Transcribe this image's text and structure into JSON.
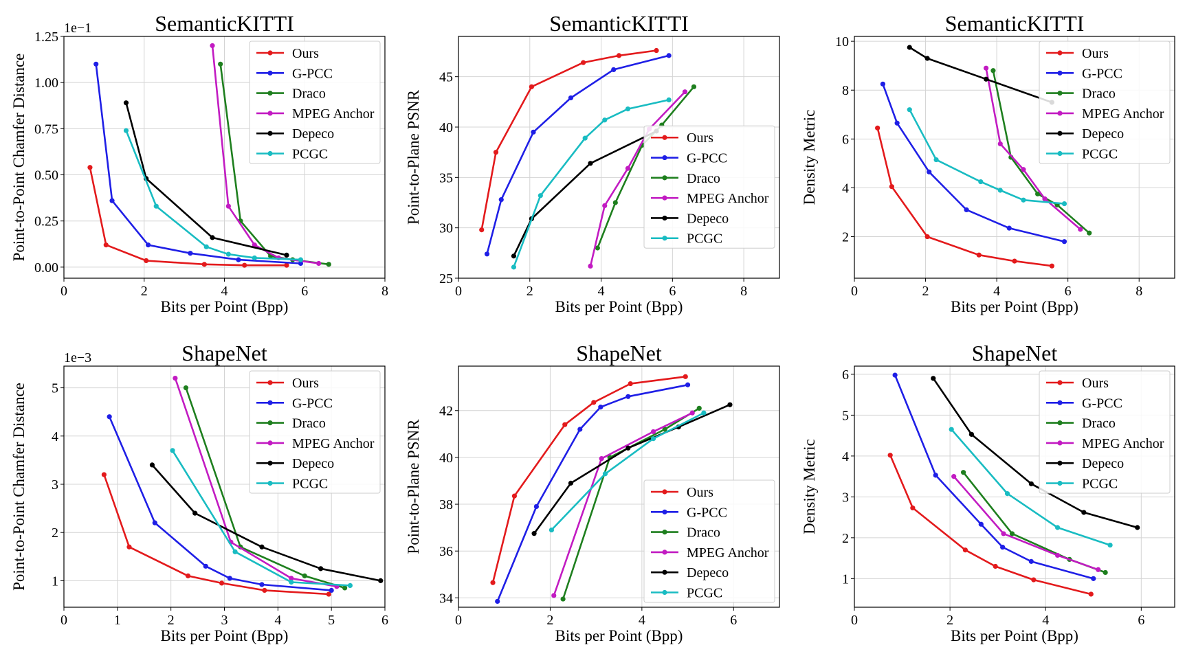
{
  "figure": {
    "colors": {
      "Ours": "#e31a1c",
      "G-PCC": "#1f1fe6",
      "Draco": "#1e7f1e",
      "MPEG Anchor": "#c21bc2",
      "Depeco": "#000000",
      "PCGC": "#19bcc2"
    }
  },
  "chart_data": [
    {
      "type": "line",
      "title": "SemanticKITTI",
      "xlabel": "Bits per Point (Bpp)",
      "ylabel": "Point-to-Point Chamfer Distance",
      "offset_text": "1e−1",
      "xlim": [
        0,
        8
      ],
      "ylim": [
        -0.06,
        1.25
      ],
      "xticks": [
        0,
        2,
        4,
        6,
        8
      ],
      "xtick_labels": [
        "0",
        "2",
        "4",
        "6",
        "8"
      ],
      "yticks": [
        0,
        0.25,
        0.5,
        0.75,
        1.0,
        1.25
      ],
      "ytick_labels": [
        "0.00",
        "0.25",
        "0.50",
        "0.75",
        "1.00",
        "1.25"
      ],
      "legend_pos": "top-right",
      "series": [
        {
          "name": "Ours",
          "x": [
            0.65,
            1.05,
            2.05,
            3.5,
            4.5,
            5.55
          ],
          "y": [
            0.54,
            0.12,
            0.035,
            0.015,
            0.01,
            0.01
          ]
        },
        {
          "name": "G-PCC",
          "x": [
            0.8,
            1.2,
            2.1,
            3.15,
            4.35,
            5.9
          ],
          "y": [
            1.1,
            0.36,
            0.12,
            0.075,
            0.04,
            0.02
          ]
        },
        {
          "name": "Draco",
          "x": [
            3.9,
            4.4,
            5.15,
            5.7,
            6.6
          ],
          "y": [
            1.1,
            0.25,
            0.06,
            0.04,
            0.015
          ]
        },
        {
          "name": "MPEG Anchor",
          "x": [
            3.7,
            4.1,
            4.75,
            5.35,
            6.35
          ],
          "y": [
            1.2,
            0.33,
            0.12,
            0.05,
            0.02
          ]
        },
        {
          "name": "Depeco",
          "x": [
            1.55,
            2.05,
            3.7,
            5.55
          ],
          "y": [
            0.89,
            0.48,
            0.16,
            0.065
          ]
        },
        {
          "name": "PCGC",
          "x": [
            1.55,
            2.3,
            3.55,
            4.1,
            4.75,
            5.9
          ],
          "y": [
            0.74,
            0.33,
            0.11,
            0.07,
            0.05,
            0.04
          ]
        }
      ]
    },
    {
      "type": "line",
      "title": "SemanticKITTI",
      "xlabel": "Bits per Point (Bpp)",
      "ylabel": "Point-to-Plane PSNR",
      "xlim": [
        0,
        9
      ],
      "ylim": [
        25,
        49
      ],
      "xticks": [
        0,
        2,
        4,
        6,
        8
      ],
      "xtick_labels": [
        "0",
        "2",
        "4",
        "6",
        "8"
      ],
      "yticks": [
        25,
        30,
        35,
        40,
        45
      ],
      "ytick_labels": [
        "25",
        "30",
        "35",
        "40",
        "45"
      ],
      "legend_pos": "center-right",
      "series": [
        {
          "name": "Ours",
          "x": [
            0.65,
            1.05,
            2.05,
            3.5,
            4.5,
            5.55
          ],
          "y": [
            29.8,
            37.5,
            44.0,
            46.4,
            47.1,
            47.6
          ]
        },
        {
          "name": "G-PCC",
          "x": [
            0.8,
            1.2,
            2.1,
            3.15,
            4.35,
            5.9
          ],
          "y": [
            27.4,
            32.8,
            39.5,
            42.9,
            45.7,
            47.1
          ]
        },
        {
          "name": "Draco",
          "x": [
            3.9,
            4.4,
            5.15,
            5.7,
            6.6
          ],
          "y": [
            28.0,
            32.5,
            38.2,
            40.2,
            44.0
          ]
        },
        {
          "name": "MPEG Anchor",
          "x": [
            3.7,
            4.1,
            4.75,
            5.35,
            6.35
          ],
          "y": [
            26.2,
            32.2,
            35.9,
            39.8,
            43.5
          ]
        },
        {
          "name": "Depeco",
          "x": [
            1.55,
            2.05,
            3.7,
            5.55
          ],
          "y": [
            27.2,
            30.9,
            36.4,
            39.6
          ]
        },
        {
          "name": "PCGC",
          "x": [
            1.55,
            2.3,
            3.55,
            4.1,
            4.75,
            5.9
          ],
          "y": [
            26.1,
            33.2,
            38.9,
            40.7,
            41.8,
            42.7
          ]
        }
      ]
    },
    {
      "type": "line",
      "title": "SemanticKITTI",
      "xlabel": "Bits per Point (Bpp)",
      "ylabel": "Density Metric",
      "xlim": [
        0,
        9
      ],
      "ylim": [
        0.3,
        10.2
      ],
      "xticks": [
        0,
        2,
        4,
        6,
        8
      ],
      "xtick_labels": [
        "0",
        "2",
        "4",
        "6",
        "8"
      ],
      "yticks": [
        2,
        4,
        6,
        8,
        10
      ],
      "ytick_labels": [
        "2",
        "4",
        "6",
        "8",
        "10"
      ],
      "legend_pos": "top-right",
      "series": [
        {
          "name": "Ours",
          "x": [
            0.65,
            1.05,
            2.05,
            3.5,
            4.5,
            5.55
          ],
          "y": [
            6.45,
            4.05,
            2.0,
            1.25,
            1.0,
            0.8
          ]
        },
        {
          "name": "G-PCC",
          "x": [
            0.8,
            1.2,
            2.1,
            3.15,
            4.35,
            5.9
          ],
          "y": [
            8.25,
            6.65,
            4.65,
            3.1,
            2.35,
            1.8
          ]
        },
        {
          "name": "Draco",
          "x": [
            3.9,
            4.4,
            5.15,
            5.7,
            6.6
          ],
          "y": [
            8.8,
            5.25,
            3.75,
            3.3,
            2.15
          ]
        },
        {
          "name": "MPEG Anchor",
          "x": [
            3.7,
            4.1,
            4.75,
            5.35,
            6.35
          ],
          "y": [
            8.9,
            5.8,
            4.75,
            3.55,
            2.3
          ]
        },
        {
          "name": "Depeco",
          "x": [
            1.55,
            2.05,
            3.7,
            5.55
          ],
          "y": [
            9.75,
            9.3,
            8.45,
            7.5
          ]
        },
        {
          "name": "PCGC",
          "x": [
            1.55,
            2.3,
            3.55,
            4.1,
            4.75,
            5.9
          ],
          "y": [
            7.2,
            5.15,
            4.25,
            3.9,
            3.5,
            3.35
          ]
        }
      ]
    },
    {
      "type": "line",
      "title": "ShapeNet",
      "xlabel": "Bits per Point (Bpp)",
      "ylabel": "Point-to-Point Chamfer Distance",
      "offset_text": "1e−3",
      "xlim": [
        0,
        6
      ],
      "ylim": [
        0.45,
        5.45
      ],
      "xticks": [
        0,
        1,
        2,
        3,
        4,
        5,
        6
      ],
      "xtick_labels": [
        "0",
        "1",
        "2",
        "3",
        "4",
        "5",
        "6"
      ],
      "yticks": [
        1,
        2,
        3,
        4,
        5
      ],
      "ytick_labels": [
        "1",
        "2",
        "3",
        "4",
        "5"
      ],
      "legend_pos": "top-right",
      "series": [
        {
          "name": "Ours",
          "x": [
            0.75,
            1.22,
            2.32,
            2.95,
            3.75,
            4.95
          ],
          "y": [
            3.2,
            1.7,
            1.1,
            0.95,
            0.8,
            0.72
          ]
        },
        {
          "name": "G-PCC",
          "x": [
            0.85,
            1.7,
            2.65,
            3.1,
            3.7,
            5.0
          ],
          "y": [
            4.4,
            2.2,
            1.3,
            1.05,
            0.92,
            0.8
          ]
        },
        {
          "name": "Draco",
          "x": [
            2.28,
            3.3,
            4.5,
            5.25
          ],
          "y": [
            5.0,
            1.7,
            1.1,
            0.85
          ]
        },
        {
          "name": "MPEG Anchor",
          "x": [
            2.08,
            3.12,
            4.25,
            5.1
          ],
          "y": [
            5.2,
            1.8,
            1.05,
            0.88
          ]
        },
        {
          "name": "Depeco",
          "x": [
            1.65,
            2.45,
            3.7,
            4.8,
            5.92
          ],
          "y": [
            3.4,
            2.4,
            1.7,
            1.25,
            1.0
          ]
        },
        {
          "name": "PCGC",
          "x": [
            2.03,
            3.2,
            4.25,
            5.35
          ],
          "y": [
            3.7,
            1.6,
            0.97,
            0.9
          ]
        }
      ]
    },
    {
      "type": "line",
      "title": "ShapeNet",
      "xlabel": "Bits per Point (Bpp)",
      "ylabel": "Point-to-Plane PSNR",
      "xlim": [
        0,
        7
      ],
      "ylim": [
        33.6,
        43.9
      ],
      "xticks": [
        0,
        2,
        4,
        6
      ],
      "xtick_labels": [
        "0",
        "2",
        "4",
        "6"
      ],
      "yticks": [
        34,
        36,
        38,
        40,
        42
      ],
      "ytick_labels": [
        "34",
        "36",
        "38",
        "40",
        "42"
      ],
      "legend_pos": "bottom-right",
      "series": [
        {
          "name": "Ours",
          "x": [
            0.75,
            1.22,
            2.32,
            2.95,
            3.75,
            4.95
          ],
          "y": [
            34.65,
            38.35,
            41.4,
            42.35,
            43.15,
            43.45
          ]
        },
        {
          "name": "G-PCC",
          "x": [
            0.85,
            1.7,
            2.65,
            3.1,
            3.7,
            5.0
          ],
          "y": [
            33.85,
            37.9,
            41.2,
            42.15,
            42.6,
            43.1
          ]
        },
        {
          "name": "Draco",
          "x": [
            2.28,
            3.3,
            4.5,
            5.25
          ],
          "y": [
            33.95,
            40.0,
            41.2,
            42.1
          ]
        },
        {
          "name": "MPEG Anchor",
          "x": [
            2.08,
            3.12,
            4.25,
            5.1
          ],
          "y": [
            34.1,
            39.95,
            41.1,
            41.9
          ]
        },
        {
          "name": "Depeco",
          "x": [
            1.65,
            2.45,
            3.7,
            4.8,
            5.92
          ],
          "y": [
            36.75,
            38.9,
            40.4,
            41.3,
            42.25
          ]
        },
        {
          "name": "PCGC",
          "x": [
            2.03,
            3.2,
            4.25,
            5.35
          ],
          "y": [
            36.9,
            39.3,
            40.8,
            41.9
          ]
        }
      ]
    },
    {
      "type": "line",
      "title": "ShapeNet",
      "xlabel": "Bits per Point (Bpp)",
      "ylabel": "Density Metric",
      "xlim": [
        0,
        6.7
      ],
      "ylim": [
        0.3,
        6.2
      ],
      "xticks": [
        0,
        2,
        4,
        6
      ],
      "xtick_labels": [
        "0",
        "2",
        "4",
        "6"
      ],
      "yticks": [
        1,
        2,
        3,
        4,
        5,
        6
      ],
      "ytick_labels": [
        "1",
        "2",
        "3",
        "4",
        "5",
        "6"
      ],
      "legend_pos": "top-right",
      "series": [
        {
          "name": "Ours",
          "x": [
            0.75,
            1.22,
            2.32,
            2.95,
            3.75,
            4.95
          ],
          "y": [
            4.02,
            2.73,
            1.7,
            1.3,
            0.97,
            0.62
          ]
        },
        {
          "name": "G-PCC",
          "x": [
            0.85,
            1.7,
            2.65,
            3.1,
            3.7,
            5.0
          ],
          "y": [
            5.98,
            3.53,
            2.33,
            1.77,
            1.42,
            1.0
          ]
        },
        {
          "name": "Draco",
          "x": [
            2.28,
            3.3,
            4.5,
            5.25
          ],
          "y": [
            3.6,
            2.1,
            1.47,
            1.15
          ]
        },
        {
          "name": "MPEG Anchor",
          "x": [
            2.08,
            3.12,
            4.25,
            5.1
          ],
          "y": [
            3.5,
            2.1,
            1.57,
            1.22
          ]
        },
        {
          "name": "Depeco",
          "x": [
            1.65,
            2.45,
            3.7,
            4.8,
            5.92
          ],
          "y": [
            5.9,
            4.53,
            3.32,
            2.62,
            2.25
          ]
        },
        {
          "name": "PCGC",
          "x": [
            2.03,
            3.2,
            4.25,
            5.35
          ],
          "y": [
            4.65,
            3.08,
            2.25,
            1.82
          ]
        }
      ]
    }
  ]
}
